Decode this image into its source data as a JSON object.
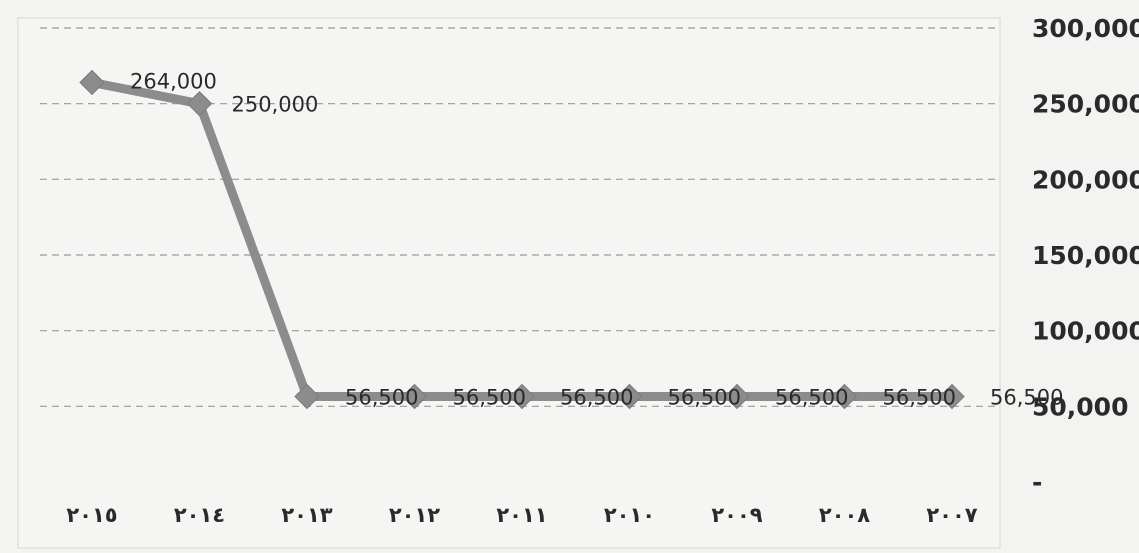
{
  "chart_data": {
    "type": "line",
    "categories": [
      "٢٠١٥",
      "٢٠١٤",
      "٢٠١٣",
      "٢٠١٢",
      "٢٠١١",
      "٢٠١٠",
      "٢٠٠٩",
      "٢٠٠٨",
      "٢٠٠٧"
    ],
    "values": [
      264000,
      250000,
      56500,
      56500,
      56500,
      56500,
      56500,
      56500,
      56500
    ],
    "data_labels": [
      "264,000",
      "250,000",
      "56,500",
      "56,500",
      "56,500",
      "56,500",
      "56,500",
      "56,500",
      "56,500"
    ],
    "yticks": [
      0,
      50000,
      100000,
      150000,
      200000,
      250000,
      300000
    ],
    "ytick_labels": [
      "-",
      "50,000",
      "100,000",
      "150,000",
      "200,000",
      "250,000",
      "300,000"
    ],
    "ylim": [
      0,
      300000
    ],
    "y_axis_side": "right",
    "grid": true,
    "line_color": "#8c8c8c",
    "marker": "diamond",
    "title": "",
    "xlabel": "",
    "ylabel": ""
  }
}
